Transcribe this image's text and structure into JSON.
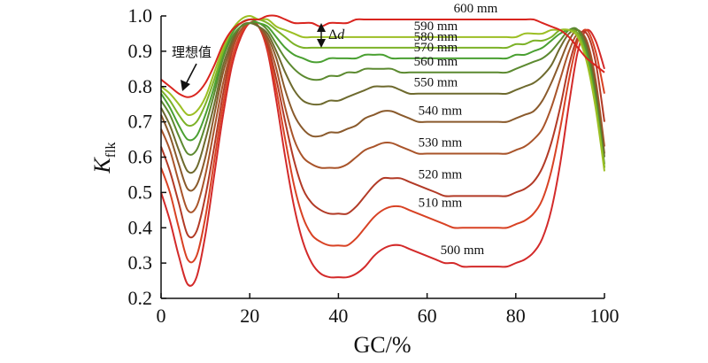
{
  "chart_data": {
    "type": "line",
    "xlabel": "GC/%",
    "ylabel_main": "K",
    "ylabel_sub": "flk",
    "xlim": [
      0,
      100
    ],
    "ylim": [
      0.2,
      1.0
    ],
    "xticks": [
      "0",
      "20",
      "40",
      "60",
      "80",
      "100"
    ],
    "yticks": [
      "0.2",
      "0.3",
      "0.4",
      "0.5",
      "0.6",
      "0.7",
      "0.8",
      "0.9",
      "1.0"
    ],
    "annotation_ideal": "理想值",
    "annotation_delta_symbol": "Δ",
    "annotation_delta_var": "d",
    "x": [
      0,
      2,
      4,
      6,
      8,
      10,
      12,
      14,
      16,
      18,
      20,
      22,
      24,
      26,
      28,
      30,
      32,
      34,
      36,
      38,
      40,
      42,
      44,
      46,
      48,
      50,
      52,
      54,
      56,
      58,
      60,
      62,
      64,
      66,
      68,
      70,
      72,
      74,
      76,
      78,
      80,
      82,
      84,
      86,
      88,
      90,
      92,
      94,
      96,
      98,
      100
    ],
    "series": [
      {
        "name": "500 mm",
        "color": "#d32a2a",
        "values": [
          0.5,
          0.42,
          0.32,
          0.24,
          0.26,
          0.38,
          0.55,
          0.72,
          0.86,
          0.94,
          0.98,
          0.97,
          0.9,
          0.76,
          0.6,
          0.46,
          0.36,
          0.3,
          0.27,
          0.26,
          0.26,
          0.26,
          0.27,
          0.29,
          0.32,
          0.34,
          0.35,
          0.35,
          0.34,
          0.33,
          0.32,
          0.31,
          0.3,
          0.3,
          0.29,
          0.29,
          0.29,
          0.29,
          0.29,
          0.29,
          0.3,
          0.31,
          0.33,
          0.37,
          0.45,
          0.58,
          0.75,
          0.9,
          0.96,
          0.93,
          0.85
        ]
      },
      {
        "name": "510 mm",
        "color": "#d84224",
        "values": [
          0.57,
          0.5,
          0.4,
          0.31,
          0.32,
          0.43,
          0.59,
          0.75,
          0.88,
          0.95,
          0.98,
          0.97,
          0.91,
          0.79,
          0.65,
          0.52,
          0.43,
          0.38,
          0.36,
          0.35,
          0.35,
          0.35,
          0.37,
          0.4,
          0.43,
          0.45,
          0.46,
          0.46,
          0.45,
          0.44,
          0.43,
          0.42,
          0.41,
          0.4,
          0.4,
          0.4,
          0.4,
          0.4,
          0.4,
          0.4,
          0.41,
          0.42,
          0.44,
          0.48,
          0.56,
          0.68,
          0.82,
          0.93,
          0.96,
          0.9,
          0.78
        ]
      },
      {
        "name": "520 mm",
        "color": "#b23a26",
        "values": [
          0.63,
          0.56,
          0.47,
          0.38,
          0.39,
          0.49,
          0.63,
          0.78,
          0.9,
          0.96,
          0.98,
          0.97,
          0.92,
          0.82,
          0.7,
          0.59,
          0.51,
          0.47,
          0.45,
          0.44,
          0.44,
          0.44,
          0.46,
          0.49,
          0.52,
          0.54,
          0.54,
          0.54,
          0.53,
          0.52,
          0.51,
          0.5,
          0.49,
          0.49,
          0.49,
          0.49,
          0.49,
          0.49,
          0.49,
          0.49,
          0.5,
          0.51,
          0.53,
          0.57,
          0.64,
          0.74,
          0.86,
          0.94,
          0.95,
          0.87,
          0.7
        ]
      },
      {
        "name": "530 mm",
        "color": "#a9542a",
        "values": [
          0.68,
          0.62,
          0.53,
          0.45,
          0.46,
          0.55,
          0.68,
          0.81,
          0.91,
          0.96,
          0.98,
          0.97,
          0.93,
          0.85,
          0.74,
          0.65,
          0.6,
          0.58,
          0.57,
          0.57,
          0.57,
          0.58,
          0.6,
          0.62,
          0.63,
          0.64,
          0.64,
          0.63,
          0.62,
          0.61,
          0.61,
          0.61,
          0.61,
          0.61,
          0.61,
          0.61,
          0.61,
          0.61,
          0.61,
          0.61,
          0.62,
          0.63,
          0.65,
          0.68,
          0.74,
          0.82,
          0.9,
          0.95,
          0.93,
          0.82,
          0.63
        ]
      },
      {
        "name": "540 mm",
        "color": "#8a5a2c",
        "values": [
          0.72,
          0.66,
          0.58,
          0.51,
          0.52,
          0.6,
          0.72,
          0.84,
          0.92,
          0.97,
          0.98,
          0.97,
          0.94,
          0.88,
          0.79,
          0.72,
          0.68,
          0.66,
          0.66,
          0.67,
          0.67,
          0.68,
          0.69,
          0.71,
          0.72,
          0.73,
          0.73,
          0.72,
          0.71,
          0.7,
          0.7,
          0.7,
          0.7,
          0.7,
          0.7,
          0.7,
          0.7,
          0.7,
          0.7,
          0.7,
          0.71,
          0.72,
          0.73,
          0.76,
          0.81,
          0.87,
          0.93,
          0.96,
          0.92,
          0.8,
          0.61
        ]
      },
      {
        "name": "550 mm",
        "color": "#6e6a2e",
        "values": [
          0.74,
          0.69,
          0.62,
          0.56,
          0.57,
          0.65,
          0.75,
          0.86,
          0.93,
          0.97,
          0.98,
          0.97,
          0.95,
          0.9,
          0.84,
          0.79,
          0.76,
          0.75,
          0.75,
          0.76,
          0.76,
          0.77,
          0.78,
          0.79,
          0.8,
          0.8,
          0.8,
          0.79,
          0.78,
          0.78,
          0.78,
          0.78,
          0.78,
          0.78,
          0.78,
          0.78,
          0.78,
          0.78,
          0.78,
          0.78,
          0.79,
          0.8,
          0.81,
          0.83,
          0.86,
          0.91,
          0.95,
          0.96,
          0.91,
          0.79,
          0.6
        ]
      },
      {
        "name": "560 mm",
        "color": "#5c8a30",
        "values": [
          0.76,
          0.72,
          0.66,
          0.61,
          0.62,
          0.69,
          0.78,
          0.88,
          0.94,
          0.97,
          0.98,
          0.98,
          0.96,
          0.92,
          0.88,
          0.85,
          0.83,
          0.82,
          0.82,
          0.83,
          0.83,
          0.84,
          0.84,
          0.85,
          0.85,
          0.85,
          0.85,
          0.84,
          0.84,
          0.84,
          0.84,
          0.84,
          0.84,
          0.84,
          0.84,
          0.84,
          0.84,
          0.84,
          0.84,
          0.84,
          0.85,
          0.86,
          0.87,
          0.88,
          0.9,
          0.93,
          0.96,
          0.96,
          0.9,
          0.77,
          0.58
        ]
      },
      {
        "name": "570 mm",
        "color": "#4aa032",
        "values": [
          0.78,
          0.74,
          0.69,
          0.65,
          0.66,
          0.72,
          0.8,
          0.89,
          0.95,
          0.98,
          0.99,
          0.98,
          0.97,
          0.94,
          0.91,
          0.89,
          0.88,
          0.87,
          0.87,
          0.88,
          0.88,
          0.88,
          0.88,
          0.89,
          0.89,
          0.89,
          0.88,
          0.88,
          0.88,
          0.88,
          0.88,
          0.88,
          0.88,
          0.88,
          0.88,
          0.88,
          0.88,
          0.88,
          0.88,
          0.88,
          0.89,
          0.89,
          0.9,
          0.91,
          0.93,
          0.95,
          0.96,
          0.95,
          0.89,
          0.76,
          0.57
        ]
      },
      {
        "name": "580 mm",
        "color": "#7cb228",
        "values": [
          0.79,
          0.76,
          0.72,
          0.69,
          0.7,
          0.75,
          0.82,
          0.9,
          0.96,
          0.98,
          0.99,
          0.99,
          0.98,
          0.96,
          0.94,
          0.92,
          0.91,
          0.91,
          0.91,
          0.91,
          0.91,
          0.91,
          0.91,
          0.91,
          0.91,
          0.91,
          0.91,
          0.91,
          0.91,
          0.91,
          0.91,
          0.91,
          0.91,
          0.91,
          0.91,
          0.91,
          0.91,
          0.91,
          0.91,
          0.91,
          0.92,
          0.92,
          0.93,
          0.93,
          0.94,
          0.96,
          0.96,
          0.95,
          0.88,
          0.75,
          0.57
        ]
      },
      {
        "name": "590 mm",
        "color": "#9cbf24",
        "values": [
          0.8,
          0.78,
          0.75,
          0.72,
          0.73,
          0.77,
          0.84,
          0.91,
          0.96,
          0.99,
          1.0,
          0.99,
          0.99,
          0.97,
          0.96,
          0.95,
          0.94,
          0.94,
          0.94,
          0.94,
          0.94,
          0.94,
          0.94,
          0.94,
          0.94,
          0.94,
          0.94,
          0.94,
          0.94,
          0.94,
          0.94,
          0.94,
          0.94,
          0.94,
          0.94,
          0.94,
          0.94,
          0.94,
          0.94,
          0.94,
          0.94,
          0.95,
          0.95,
          0.95,
          0.96,
          0.96,
          0.96,
          0.94,
          0.87,
          0.74,
          0.56
        ]
      },
      {
        "name": "600 mm",
        "color": "#d9251f",
        "values": [
          0.82,
          0.8,
          0.78,
          0.77,
          0.78,
          0.81,
          0.86,
          0.92,
          0.96,
          0.98,
          0.99,
          0.99,
          1.0,
          1.0,
          0.99,
          0.98,
          0.98,
          0.98,
          0.97,
          0.98,
          0.98,
          0.98,
          0.99,
          0.99,
          0.99,
          0.99,
          0.99,
          0.99,
          0.99,
          0.99,
          0.99,
          0.99,
          0.99,
          0.99,
          0.99,
          0.99,
          0.99,
          0.99,
          0.99,
          0.99,
          0.99,
          0.99,
          0.99,
          0.98,
          0.97,
          0.96,
          0.94,
          0.91,
          0.88,
          0.86,
          0.84
        ]
      }
    ]
  }
}
